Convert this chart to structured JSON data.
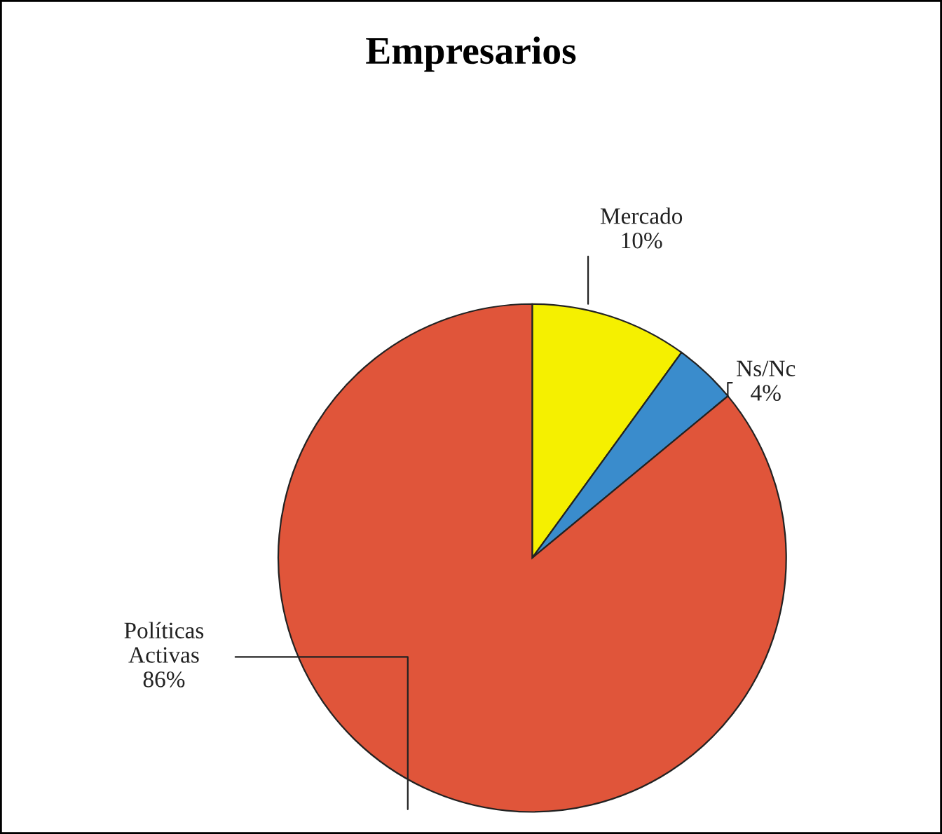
{
  "chart_data": {
    "type": "pie",
    "title": "Empresarios",
    "categories": [
      "Mercado",
      "Ns/Nc",
      "Políticas Activas"
    ],
    "values": [
      10,
      4,
      86
    ],
    "value_labels": [
      "10%",
      "4%",
      "86%"
    ],
    "colors": [
      "#f5f000",
      "#3a8ccc",
      "#e0553a"
    ]
  }
}
